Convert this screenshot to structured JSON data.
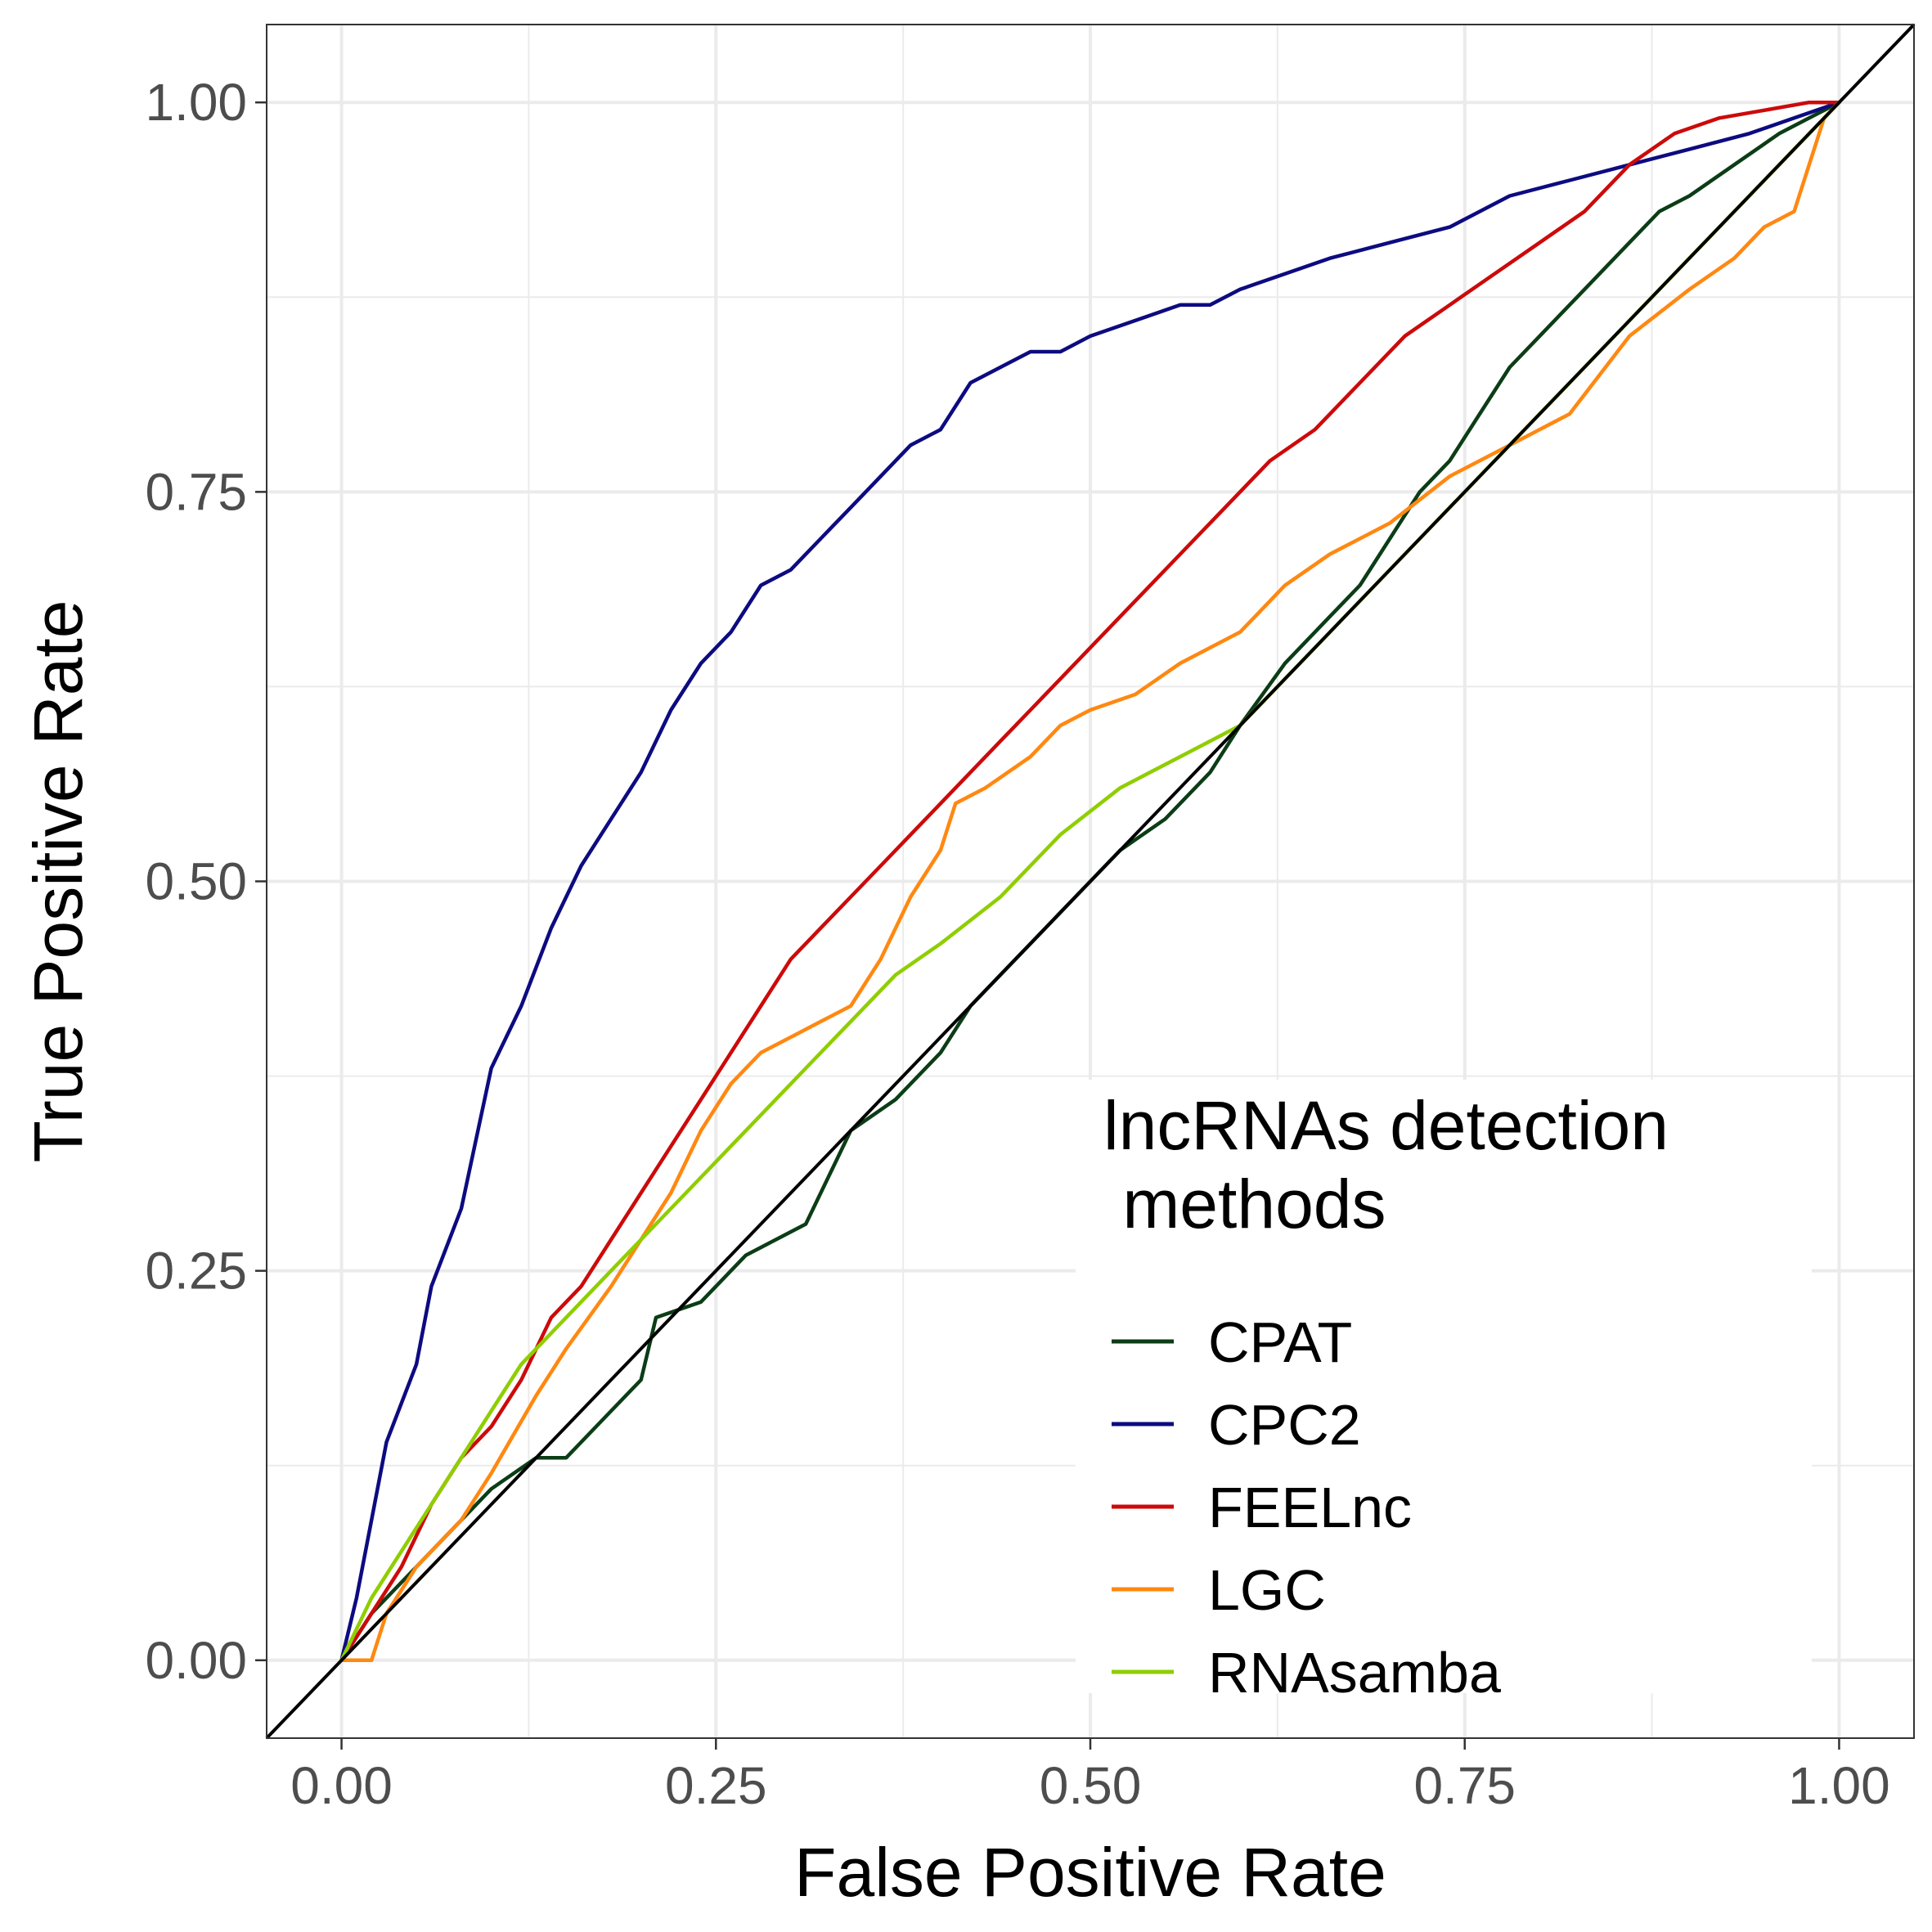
{
  "chart_data": {
    "type": "line",
    "title": "",
    "xlabel": "False Positive Rate",
    "ylabel": "True Positive Rate",
    "xlim": [
      -0.05,
      1.05
    ],
    "ylim": [
      -0.05,
      1.05
    ],
    "x_ticks": [
      0.0,
      0.25,
      0.5,
      0.75,
      1.0
    ],
    "x_tick_labels": [
      "0.00",
      "0.25",
      "0.50",
      "0.75",
      "1.00"
    ],
    "y_ticks": [
      0.0,
      0.25,
      0.5,
      0.75,
      1.0
    ],
    "y_tick_labels": [
      "0.00",
      "0.25",
      "0.50",
      "0.75",
      "1.00"
    ],
    "grid": true,
    "reference_line": {
      "x": [
        -0.05,
        1.05
      ],
      "y": [
        -0.05,
        1.05
      ],
      "color": "#000000"
    },
    "legend": {
      "title_lines": [
        "lncRNAs detection",
        " methods"
      ],
      "position": "bottom-right"
    },
    "series": [
      {
        "name": "CPAT",
        "color": "#0b3d16",
        "x": [
          0,
          0.02,
          0.05,
          0.1,
          0.13,
          0.15,
          0.18,
          0.2,
          0.21,
          0.24,
          0.27,
          0.31,
          0.34,
          0.37,
          0.4,
          0.42,
          0.44,
          0.46,
          0.48,
          0.5,
          0.52,
          0.55,
          0.58,
          0.6,
          0.63,
          0.66,
          0.68,
          0.7,
          0.72,
          0.74,
          0.76,
          0.78,
          0.8,
          0.83,
          0.86,
          0.88,
          0.9,
          0.93,
          0.96,
          0.98,
          1.0
        ],
        "y": [
          0,
          0.03,
          0.06,
          0.11,
          0.13,
          0.13,
          0.16,
          0.18,
          0.22,
          0.23,
          0.26,
          0.28,
          0.34,
          0.36,
          0.39,
          0.42,
          0.44,
          0.46,
          0.48,
          0.5,
          0.52,
          0.54,
          0.57,
          0.6,
          0.64,
          0.67,
          0.69,
          0.72,
          0.75,
          0.77,
          0.8,
          0.83,
          0.85,
          0.88,
          0.91,
          0.93,
          0.94,
          0.96,
          0.98,
          0.99,
          1.0
        ]
      },
      {
        "name": "CPC2",
        "color": "#0d0b80",
        "x": [
          0,
          0.01,
          0.02,
          0.03,
          0.05,
          0.06,
          0.08,
          0.1,
          0.12,
          0.14,
          0.16,
          0.18,
          0.2,
          0.22,
          0.24,
          0.26,
          0.28,
          0.3,
          0.32,
          0.34,
          0.36,
          0.38,
          0.4,
          0.42,
          0.44,
          0.46,
          0.48,
          0.5,
          0.53,
          0.56,
          0.58,
          0.6,
          0.63,
          0.66,
          0.7,
          0.74,
          0.78,
          0.82,
          0.86,
          0.9,
          0.94,
          0.97,
          1.0
        ],
        "y": [
          0,
          0.04,
          0.09,
          0.14,
          0.19,
          0.24,
          0.29,
          0.38,
          0.42,
          0.47,
          0.51,
          0.54,
          0.57,
          0.61,
          0.64,
          0.66,
          0.69,
          0.7,
          0.72,
          0.74,
          0.76,
          0.78,
          0.79,
          0.82,
          0.83,
          0.84,
          0.84,
          0.85,
          0.86,
          0.87,
          0.87,
          0.88,
          0.89,
          0.9,
          0.91,
          0.92,
          0.94,
          0.95,
          0.96,
          0.97,
          0.98,
          0.99,
          1.0
        ]
      },
      {
        "name": "FEELnc",
        "color": "#cc0a0a",
        "x": [
          0,
          0.02,
          0.04,
          0.06,
          0.08,
          0.1,
          0.12,
          0.14,
          0.16,
          0.18,
          0.2,
          0.22,
          0.24,
          0.26,
          0.28,
          0.3,
          0.32,
          0.34,
          0.36,
          0.38,
          0.4,
          0.42,
          0.44,
          0.46,
          0.48,
          0.5,
          0.53,
          0.56,
          0.59,
          0.62,
          0.65,
          0.68,
          0.71,
          0.74,
          0.77,
          0.8,
          0.83,
          0.86,
          0.89,
          0.92,
          0.95,
          0.98,
          1.0
        ],
        "y": [
          0,
          0.03,
          0.06,
          0.1,
          0.13,
          0.15,
          0.18,
          0.22,
          0.24,
          0.27,
          0.3,
          0.33,
          0.36,
          0.39,
          0.42,
          0.45,
          0.47,
          0.49,
          0.51,
          0.53,
          0.55,
          0.57,
          0.59,
          0.61,
          0.63,
          0.65,
          0.68,
          0.71,
          0.74,
          0.77,
          0.79,
          0.82,
          0.85,
          0.87,
          0.89,
          0.91,
          0.93,
          0.96,
          0.98,
          0.99,
          0.995,
          1.0,
          1.0
        ]
      },
      {
        "name": "LGC",
        "color": "#ff8811",
        "x": [
          0,
          0.02,
          0.03,
          0.05,
          0.08,
          0.1,
          0.13,
          0.15,
          0.18,
          0.2,
          0.22,
          0.24,
          0.26,
          0.28,
          0.3,
          0.32,
          0.34,
          0.36,
          0.38,
          0.4,
          0.41,
          0.43,
          0.46,
          0.48,
          0.5,
          0.53,
          0.56,
          0.6,
          0.63,
          0.66,
          0.7,
          0.74,
          0.78,
          0.82,
          0.86,
          0.9,
          0.93,
          0.95,
          0.97,
          0.98,
          0.99,
          1.0
        ],
        "y": [
          0,
          0.0,
          0.03,
          0.06,
          0.09,
          0.12,
          0.17,
          0.2,
          0.24,
          0.27,
          0.3,
          0.34,
          0.37,
          0.39,
          0.4,
          0.41,
          0.42,
          0.45,
          0.49,
          0.52,
          0.55,
          0.56,
          0.58,
          0.6,
          0.61,
          0.62,
          0.64,
          0.66,
          0.69,
          0.71,
          0.73,
          0.76,
          0.78,
          0.8,
          0.85,
          0.88,
          0.9,
          0.92,
          0.93,
          0.96,
          0.99,
          1.0
        ]
      },
      {
        "name": "RNAsamba",
        "color": "#8fce00",
        "x": [
          0,
          0.02,
          0.04,
          0.06,
          0.08,
          0.1,
          0.12,
          0.14,
          0.16,
          0.18,
          0.2,
          0.22,
          0.25,
          0.28,
          0.31,
          0.34,
          0.37,
          0.4,
          0.44,
          0.48,
          0.52,
          0.56,
          0.6,
          0.64,
          0.68,
          0.72,
          0.76,
          0.8,
          0.84,
          0.88,
          0.92,
          0.96,
          1.0
        ],
        "y": [
          0,
          0.04,
          0.07,
          0.1,
          0.13,
          0.16,
          0.19,
          0.21,
          0.23,
          0.25,
          0.27,
          0.29,
          0.32,
          0.35,
          0.38,
          0.41,
          0.44,
          0.46,
          0.49,
          0.53,
          0.56,
          0.58,
          0.6,
          0.64,
          0.68,
          0.72,
          0.76,
          0.8,
          0.84,
          0.88,
          0.92,
          0.96,
          1.0
        ]
      }
    ]
  }
}
